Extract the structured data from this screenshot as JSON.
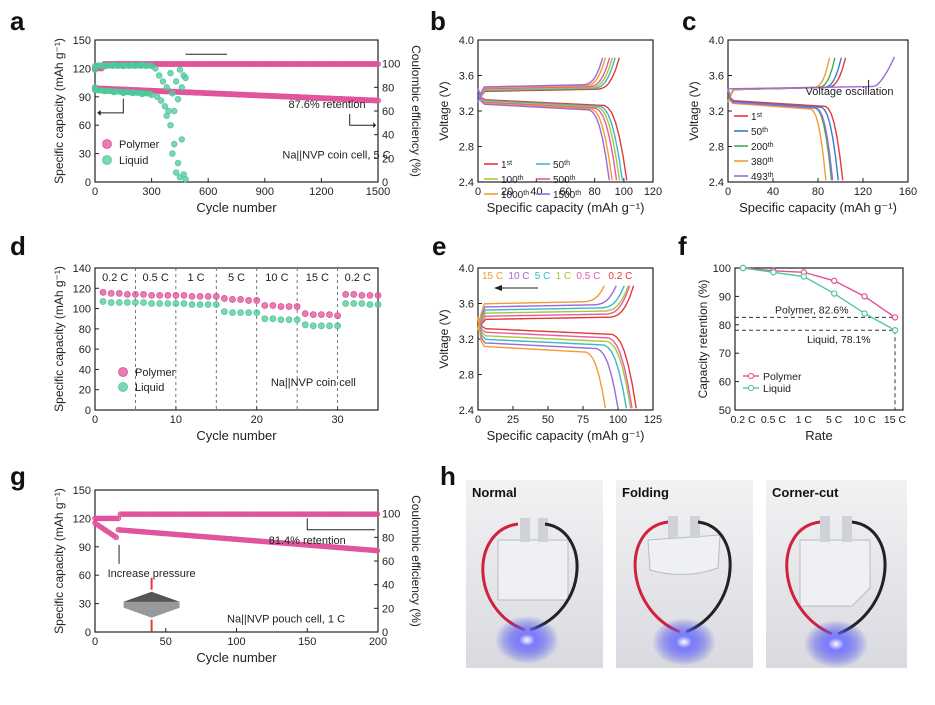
{
  "figure": {
    "panel_labels": [
      "a",
      "b",
      "c",
      "d",
      "e",
      "f",
      "g",
      "h"
    ]
  },
  "colors": {
    "polymer": "#e0509a",
    "liquid": "#4fc89a",
    "text": "#222222"
  },
  "chart_data": [
    {
      "id": "a",
      "type": "scatter",
      "xlabel": "Cycle number",
      "ylabel": "Specific capacity (mAh g⁻¹)",
      "y2label": "Coulombic efficiency (%)",
      "xlim": [
        0,
        1500
      ],
      "ylim": [
        0,
        150
      ],
      "y2lim": [
        0,
        120
      ],
      "xticks": [
        0,
        300,
        600,
        900,
        1200,
        1500
      ],
      "yticks": [
        0,
        30,
        60,
        90,
        120,
        150
      ],
      "y2ticks": [
        0,
        20,
        40,
        60,
        80,
        100
      ],
      "legend": [
        "Polymer",
        "Liquid"
      ],
      "annotations": [
        "87.6% retention",
        "Na||NVP coin cell, 5 C"
      ],
      "series": [
        {
          "name": "Polymer capacity",
          "axis": "left",
          "x": [
            0,
            100,
            200,
            300,
            400,
            500,
            600,
            700,
            800,
            900,
            1000,
            1100,
            1200,
            1300,
            1400,
            1500
          ],
          "y": [
            99,
            97,
            96,
            95,
            94,
            93,
            92,
            91,
            90,
            90,
            89,
            88,
            88,
            87,
            87,
            86
          ]
        },
        {
          "name": "Polymer CE",
          "axis": "right",
          "x": [
            0,
            100,
            200,
            300,
            400,
            500,
            600,
            700,
            800,
            900,
            1000,
            1100,
            1200,
            1300,
            1400,
            1500
          ],
          "y": [
            99,
            99.5,
            99.6,
            99.6,
            99.7,
            99.7,
            99.7,
            99.7,
            99.7,
            99.7,
            99.7,
            99.7,
            99.7,
            99.7,
            99.7,
            99.7
          ]
        },
        {
          "name": "Liquid capacity",
          "axis": "left",
          "x": [
            0,
            50,
            100,
            150,
            200,
            250,
            300,
            330,
            350,
            370,
            380,
            390,
            400,
            410,
            420,
            430,
            440,
            450,
            460,
            470,
            480
          ],
          "y": [
            100,
            96,
            95,
            94,
            94,
            93,
            92,
            90,
            86,
            80,
            70,
            75,
            60,
            30,
            40,
            10,
            20,
            5,
            45,
            8,
            3
          ]
        },
        {
          "name": "Liquid CE",
          "axis": "right",
          "x": [
            0,
            50,
            100,
            150,
            200,
            250,
            300,
            320,
            340,
            360,
            380,
            400,
            410,
            420,
            430,
            440,
            450,
            460,
            470,
            480
          ],
          "y": [
            95,
            98,
            99,
            98,
            99,
            99,
            98,
            96,
            90,
            85,
            80,
            92,
            75,
            60,
            85,
            70,
            95,
            80,
            90,
            88
          ]
        }
      ]
    },
    {
      "id": "b",
      "type": "line",
      "xlabel": "Specific capacity (mAh g⁻¹)",
      "ylabel": "Voltage (V)",
      "xlim": [
        0,
        120
      ],
      "ylim": [
        2.4,
        4.0
      ],
      "xticks": [
        0,
        20,
        40,
        60,
        80,
        100,
        120
      ],
      "yticks": [
        2.4,
        2.8,
        3.2,
        3.6,
        4.0
      ],
      "legend": [
        {
          "n": "1",
          "s": "st",
          "color": "#e53935"
        },
        {
          "n": "100",
          "s": "th",
          "color": "#a8c83c"
        },
        {
          "n": "1000",
          "s": "th",
          "color": "#f39c33"
        },
        {
          "n": "50",
          "s": "th",
          "color": "#3bb8c8"
        },
        {
          "n": "500",
          "s": "th",
          "color": "#e75aa8"
        },
        {
          "n": "1500",
          "s": "th",
          "color": "#9b6ad8"
        }
      ],
      "series": [
        {
          "name": "1st",
          "color": "#e53935",
          "cap": 102
        },
        {
          "name": "50th",
          "color": "#3bb8c8",
          "cap": 99
        },
        {
          "name": "100th",
          "color": "#a8c83c",
          "cap": 97
        },
        {
          "name": "500th",
          "color": "#e75aa8",
          "cap": 95
        },
        {
          "name": "1000th",
          "color": "#f39c33",
          "cap": 92
        },
        {
          "name": "1500th",
          "color": "#9b6ad8",
          "cap": 90
        }
      ]
    },
    {
      "id": "c",
      "type": "line",
      "xlabel": "Specific capacity (mAh g⁻¹)",
      "ylabel": "Voltage (V)",
      "xlim": [
        0,
        160
      ],
      "ylim": [
        2.4,
        4.0
      ],
      "xticks": [
        0,
        40,
        80,
        120,
        160
      ],
      "yticks": [
        2.4,
        2.8,
        3.2,
        3.6,
        4.0
      ],
      "annotation": "Voltage oscillation",
      "legend": [
        {
          "n": "1",
          "s": "st",
          "color": "#e53935"
        },
        {
          "n": "50",
          "s": "th",
          "color": "#3a7bd5"
        },
        {
          "n": "200",
          "s": "th",
          "color": "#3cb050"
        },
        {
          "n": "380",
          "s": "th",
          "color": "#f39c33"
        },
        {
          "n": "493",
          "s": "th",
          "color": "#9b6ad8"
        }
      ],
      "series": [
        {
          "name": "1st",
          "color": "#e53935",
          "cap": 110
        },
        {
          "name": "50th",
          "color": "#3a7bd5",
          "cap": 106
        },
        {
          "name": "200th",
          "color": "#3cb050",
          "cap": 100
        },
        {
          "name": "380th",
          "color": "#f39c33",
          "cap": 95
        },
        {
          "name": "493rd",
          "color": "#9b6ad8",
          "cap": 148
        }
      ]
    },
    {
      "id": "d",
      "type": "scatter",
      "xlabel": "Cycle number",
      "ylabel": "Specific capacity (mAh g⁻¹)",
      "xlim": [
        0,
        35
      ],
      "ylim": [
        0,
        140
      ],
      "xticks": [
        0,
        10,
        20,
        30
      ],
      "yticks": [
        0,
        20,
        40,
        60,
        80,
        100,
        120,
        140
      ],
      "rate_labels": [
        "0.2 C",
        "0.5 C",
        "1 C",
        "5 C",
        "10 C",
        "15 C",
        "0.2 C"
      ],
      "legend": [
        "Polymer",
        "Liquid"
      ],
      "annotation": "Na||NVP coin cell",
      "series": [
        {
          "name": "Polymer",
          "values": [
            116,
            115,
            115,
            114,
            114,
            114,
            113,
            113,
            113,
            113,
            113,
            112,
            112,
            112,
            112,
            110,
            109,
            109,
            108,
            108,
            103,
            103,
            102,
            102,
            102,
            95,
            94,
            94,
            94,
            93,
            114,
            114,
            113,
            113,
            113
          ]
        },
        {
          "name": "Liquid",
          "values": [
            107,
            106,
            106,
            106,
            106,
            106,
            105,
            105,
            105,
            105,
            105,
            104,
            104,
            104,
            104,
            97,
            96,
            96,
            96,
            96,
            90,
            90,
            89,
            89,
            89,
            84,
            83,
            83,
            83,
            83,
            105,
            105,
            105,
            104,
            104
          ]
        }
      ]
    },
    {
      "id": "e",
      "type": "line",
      "xlabel": "Specific capacity (mAh g⁻¹)",
      "ylabel": "Voltage (V)",
      "xlim": [
        0,
        125
      ],
      "ylim": [
        2.4,
        4.0
      ],
      "xticks": [
        0,
        25,
        50,
        75,
        100,
        125
      ],
      "yticks": [
        2.4,
        2.8,
        3.2,
        3.6,
        4.0
      ],
      "rate_legend": [
        {
          "label": "15 C",
          "color": "#f39c33"
        },
        {
          "label": "10 C",
          "color": "#9b6ad8"
        },
        {
          "label": "5 C",
          "color": "#3bb8c8"
        },
        {
          "label": "1 C",
          "color": "#a8c83c"
        },
        {
          "label": "0.5 C",
          "color": "#e75aa8"
        },
        {
          "label": "0.2 C",
          "color": "#e53935"
        }
      ],
      "series": [
        {
          "name": "0.2 C",
          "color": "#e53935",
          "cap": 117
        },
        {
          "name": "0.5 C",
          "color": "#e75aa8",
          "cap": 114
        },
        {
          "name": "1 C",
          "color": "#a8c83c",
          "cap": 113
        },
        {
          "name": "5 C",
          "color": "#3bb8c8",
          "cap": 110
        },
        {
          "name": "10 C",
          "color": "#9b6ad8",
          "cap": 104
        },
        {
          "name": "15 C",
          "color": "#f39c33",
          "cap": 95
        }
      ]
    },
    {
      "id": "f",
      "type": "line",
      "xlabel": "Rate",
      "ylabel": "Capacity retention (%)",
      "categories": [
        "0.2 C",
        "0.5 C",
        "1 C",
        "5 C",
        "10 C",
        "15 C"
      ],
      "ylim": [
        50,
        100
      ],
      "yticks": [
        50,
        60,
        70,
        80,
        90,
        100
      ],
      "annotations": [
        "Polymer, 82.6%",
        "Liquid, 78.1%"
      ],
      "series": [
        {
          "name": "Polymer",
          "color": "#e0509a",
          "values": [
            100,
            99,
            98.5,
            95.5,
            90,
            82.6
          ]
        },
        {
          "name": "Liquid",
          "color": "#4fc89a",
          "values": [
            100,
            98.5,
            97,
            91,
            84,
            78.1
          ]
        }
      ]
    },
    {
      "id": "g",
      "type": "scatter",
      "xlabel": "Cycle number",
      "ylabel": "Specific capacity (mAh g⁻¹)",
      "y2label": "Coulombic efficiency (%)",
      "xlim": [
        0,
        200
      ],
      "ylim": [
        0,
        150
      ],
      "y2lim": [
        0,
        120
      ],
      "xticks": [
        0,
        50,
        100,
        150,
        200
      ],
      "yticks": [
        0,
        30,
        60,
        90,
        120,
        150
      ],
      "y2ticks": [
        0,
        20,
        40,
        60,
        80,
        100
      ],
      "annotations": [
        "81.4% retention",
        "Increase pressure",
        "Na||NVP pouch cell, 1 C"
      ],
      "series": [
        {
          "name": "Polymer capacity",
          "axis": "left",
          "x": [
            0,
            5,
            10,
            15,
            18,
            20,
            30,
            50,
            75,
            100,
            125,
            150,
            175,
            200
          ],
          "y": [
            115,
            110,
            105,
            100,
            108,
            106,
            105,
            103,
            100,
            98,
            96,
            93,
            90,
            86
          ]
        },
        {
          "name": "Polymer CE",
          "axis": "right",
          "x": [
            0,
            5,
            10,
            15,
            18,
            20,
            30,
            50,
            75,
            100,
            125,
            150,
            175,
            200
          ],
          "y": [
            96,
            95,
            95,
            96,
            98,
            99,
            99.5,
            99.6,
            99.7,
            99.7,
            99.7,
            99.7,
            99.7,
            99.7
          ]
        }
      ]
    }
  ],
  "photos": [
    {
      "id": "h1",
      "label": "Normal"
    },
    {
      "id": "h2",
      "label": "Folding"
    },
    {
      "id": "h3",
      "label": "Corner-cut"
    }
  ]
}
